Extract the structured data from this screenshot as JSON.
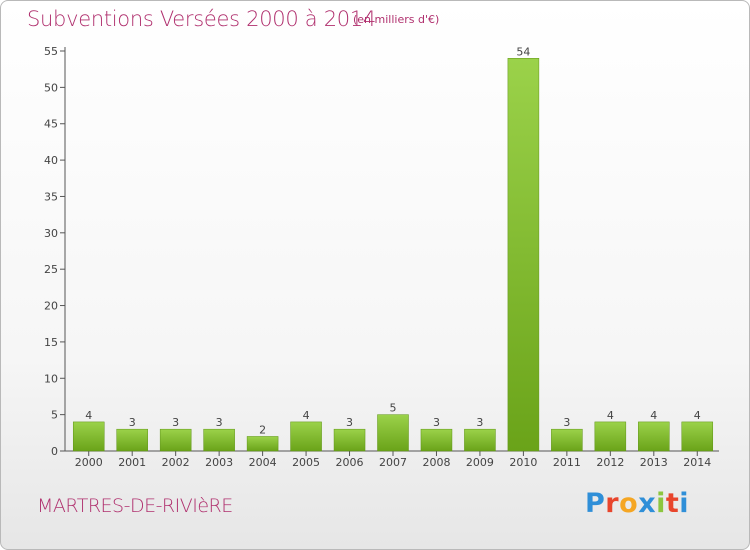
{
  "header": {
    "title": "Subventions Versées 2000 à 2014",
    "unit_note": "(en milliers d'€)"
  },
  "footer": {
    "place": "MARTRES-DE-RIVIèRE",
    "logo_text": "Proxiti",
    "logo_colors": [
      "#2f8fd8",
      "#e8452c",
      "#f5a623",
      "#2f8fd8",
      "#8cc63f",
      "#e8452c",
      "#2f8fd8"
    ]
  },
  "colors": {
    "bar_light": "#9bd24a",
    "bar_dark": "#6aa319",
    "axis": "#555555",
    "title": "#b0306e"
  },
  "chart_data": {
    "type": "bar",
    "title": "Subventions Versées 2000 à 2014",
    "subtitle": "(en milliers d'€)",
    "xlabel": "",
    "ylabel": "",
    "categories": [
      "2000",
      "2001",
      "2002",
      "2003",
      "2004",
      "2005",
      "2006",
      "2007",
      "2008",
      "2009",
      "2010",
      "2011",
      "2012",
      "2013",
      "2014"
    ],
    "values": [
      4,
      3,
      3,
      3,
      2,
      4,
      3,
      5,
      3,
      3,
      54,
      3,
      4,
      4,
      4
    ],
    "ylim": [
      0,
      55
    ],
    "yticks": [
      0,
      5,
      10,
      15,
      20,
      25,
      30,
      35,
      40,
      45,
      50,
      55
    ],
    "grid": false,
    "legend": "none",
    "data_labels": true
  }
}
